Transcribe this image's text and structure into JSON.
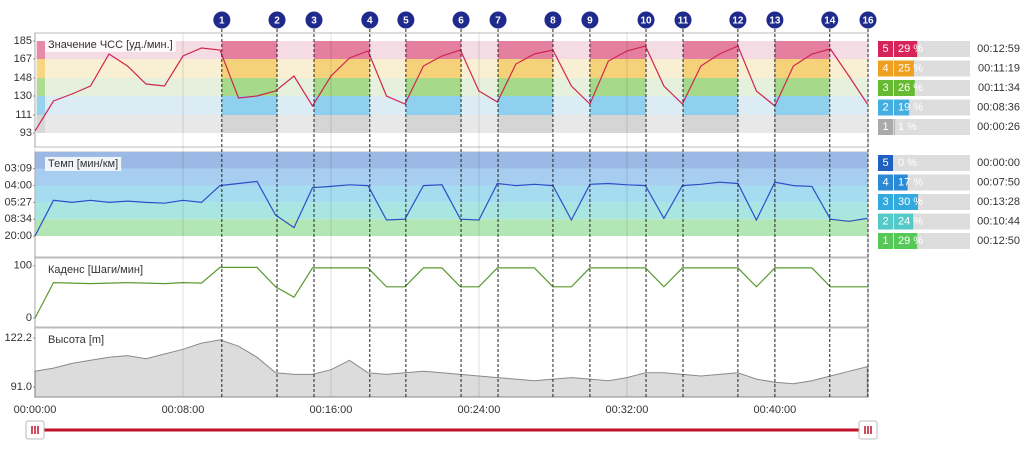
{
  "chart_data": [
    {
      "type": "line",
      "title": "Значение ЧСС [уд./мин.]",
      "x": [
        0,
        60,
        120,
        180,
        240,
        300,
        360,
        420,
        480,
        540,
        600,
        660,
        720,
        780,
        840,
        900,
        960,
        1020,
        1080,
        1140,
        1200,
        1260,
        1320,
        1380,
        1440,
        1500,
        1560,
        1620,
        1680,
        1740,
        1800,
        1860,
        1920,
        1980,
        2040,
        2100,
        2160,
        2220,
        2280,
        2340,
        2400,
        2460,
        2520,
        2580,
        2640,
        2700
      ],
      "series": [
        {
          "color": "#d0264e",
          "values": [
            95,
            125,
            132,
            140,
            172,
            160,
            142,
            140,
            170,
            178,
            176,
            128,
            130,
            135,
            150,
            120,
            150,
            168,
            175,
            130,
            122,
            160,
            170,
            176,
            135,
            124,
            162,
            172,
            176,
            140,
            122,
            165,
            175,
            180,
            140,
            122,
            160,
            172,
            180,
            135,
            120,
            160,
            172,
            177,
            150,
            122
          ]
        }
      ],
      "xlim": [
        0,
        2702
      ],
      "ylim": [
        79,
        193
      ],
      "yticks": [
        93,
        111,
        130,
        148,
        167,
        185
      ],
      "zone_colors": [
        "#d5d5d5",
        "#8fd0ee",
        "#a6d98a",
        "#f5d27a",
        "#e57fa0"
      ],
      "zone_colors_pale": [
        "#e8e8e8",
        "#dcecf4",
        "#e5f1dc",
        "#f9efd3",
        "#f5dbe3"
      ]
    },
    {
      "type": "line",
      "title": "Темп [мин/км]",
      "x": [
        0,
        60,
        120,
        180,
        240,
        300,
        360,
        420,
        480,
        540,
        600,
        660,
        720,
        780,
        840,
        900,
        960,
        1020,
        1080,
        1140,
        1200,
        1260,
        1320,
        1380,
        1440,
        1500,
        1560,
        1620,
        1680,
        1740,
        1800,
        1860,
        1920,
        1980,
        2040,
        2100,
        2160,
        2220,
        2280,
        2340,
        2400,
        2460,
        2520,
        2580,
        2640,
        2700
      ],
      "series": [
        {
          "color": "#2a50c8",
          "values": [
            3,
            11.5,
            11,
            11.5,
            11,
            11.3,
            11,
            10.8,
            11.5,
            11,
            15,
            15.5,
            16,
            8,
            5,
            14.5,
            14.8,
            15.2,
            15,
            6.8,
            7,
            15,
            15.2,
            7,
            6.8,
            15.5,
            15,
            15.3,
            15,
            6.8,
            15.3,
            15.5,
            15.2,
            15,
            7.2,
            15,
            15.3,
            15.8,
            15.5,
            6.8,
            15.8,
            15,
            14.8,
            7,
            6.5,
            7.2
          ]
        }
      ],
      "xlim": [
        0,
        2702
      ],
      "ylim": [
        -2,
        23
      ],
      "yticks": [
        {
          "value": 19.05,
          "label": "03:09"
        },
        {
          "value": 15,
          "label": "04:00"
        },
        {
          "value": 11,
          "label": "05:27"
        },
        {
          "value": 7,
          "label": "08:34"
        },
        {
          "value": 3,
          "label": "20:00"
        }
      ],
      "zone_colors": [
        "#b2e6b4",
        "#a9e6e2",
        "#a5dcef",
        "#a7cdf0",
        "#9bb9e4"
      ]
    },
    {
      "type": "line",
      "title": "Каденс [Шаги/мин]",
      "x": [
        0,
        60,
        120,
        180,
        240,
        300,
        360,
        420,
        480,
        540,
        600,
        660,
        720,
        780,
        840,
        900,
        960,
        1020,
        1080,
        1140,
        1200,
        1260,
        1320,
        1380,
        1440,
        1500,
        1560,
        1620,
        1680,
        1740,
        1800,
        1860,
        1920,
        1980,
        2040,
        2100,
        2160,
        2220,
        2280,
        2340,
        2400,
        2460,
        2520,
        2580,
        2640,
        2700
      ],
      "series": [
        {
          "color": "#5a9a30",
          "values": [
            0,
            68,
            67,
            66,
            67,
            68,
            67,
            66,
            68,
            67,
            97,
            97,
            97,
            60,
            40,
            96,
            96,
            96,
            96,
            60,
            60,
            96,
            96,
            60,
            60,
            96,
            96,
            96,
            60,
            60,
            96,
            96,
            96,
            96,
            60,
            96,
            96,
            96,
            96,
            60,
            96,
            96,
            96,
            60,
            60,
            60
          ]
        }
      ],
      "xlim": [
        0,
        2702
      ],
      "ylim": [
        -17,
        115
      ],
      "yticks": [
        0,
        100
      ]
    },
    {
      "type": "area",
      "title": "Высота [m]",
      "x": [
        0,
        60,
        120,
        180,
        240,
        300,
        360,
        420,
        480,
        540,
        600,
        660,
        720,
        780,
        840,
        900,
        960,
        1020,
        1080,
        1140,
        1200,
        1260,
        1320,
        1380,
        1440,
        1500,
        1560,
        1620,
        1680,
        1740,
        1800,
        1860,
        1920,
        1980,
        2040,
        2100,
        2160,
        2220,
        2280,
        2340,
        2400,
        2460,
        2520,
        2580,
        2640,
        2700
      ],
      "series": [
        {
          "color": "#8a8a8a",
          "values": [
            101,
            103,
            106,
            108,
            110,
            111,
            109,
            112,
            115,
            119,
            121,
            117,
            110,
            100,
            99,
            99,
            102,
            108,
            100,
            99,
            100,
            101,
            100,
            99,
            98,
            97,
            96,
            95,
            96,
            97,
            96,
            95,
            97,
            100,
            100,
            99,
            98,
            99,
            100,
            96,
            94,
            93,
            95,
            98,
            101,
            104
          ]
        }
      ],
      "xlim": [
        0,
        2702
      ],
      "ylim": [
        84.6,
        128.6
      ],
      "yticks": [
        {
          "value": 91,
          "label": "91.0"
        },
        122.2
      ],
      "xticks": [
        {
          "value": 0,
          "label": "00:00:00"
        },
        {
          "value": 480,
          "label": "00:08:00"
        },
        {
          "value": 960,
          "label": "00:16:00"
        },
        {
          "value": 1440,
          "label": "00:24:00"
        },
        {
          "value": 1920,
          "label": "00:32:00"
        },
        {
          "value": 2400,
          "label": "00:40:00"
        }
      ]
    }
  ],
  "laps": [
    {
      "label": "1",
      "time": 606
    },
    {
      "label": "2",
      "time": 785
    },
    {
      "label": "3",
      "time": 905
    },
    {
      "label": "4",
      "time": 1086
    },
    {
      "label": "5",
      "time": 1203
    },
    {
      "label": "6",
      "time": 1382
    },
    {
      "label": "7",
      "time": 1502
    },
    {
      "label": "8",
      "time": 1680
    },
    {
      "label": "9",
      "time": 1800
    },
    {
      "label": "10",
      "time": 1982
    },
    {
      "label": "11",
      "time": 2102
    },
    {
      "label": "12",
      "time": 2280
    },
    {
      "label": "13",
      "time": 2400
    },
    {
      "label": "14",
      "time": 2578
    },
    {
      "label": "16",
      "time": 2702
    }
  ],
  "hr_zones": [
    {
      "zone": "5",
      "percent": 29,
      "percent_label": "29 %",
      "time": "00:12:59",
      "color": "#d6245a"
    },
    {
      "zone": "4",
      "percent": 25,
      "percent_label": "25 %",
      "time": "00:11:19",
      "color": "#f0a020"
    },
    {
      "zone": "3",
      "percent": 26,
      "percent_label": "26 %",
      "time": "00:11:34",
      "color": "#66bb33"
    },
    {
      "zone": "2",
      "percent": 19,
      "percent_label": "19 %",
      "time": "00:08:36",
      "color": "#44aee0"
    },
    {
      "zone": "1",
      "percent": 1,
      "percent_label": "1 %",
      "time": "00:00:26",
      "color": "#aaaaaa"
    }
  ],
  "pace_zones": [
    {
      "zone": "5",
      "percent": 0,
      "percent_label": "0 %",
      "time": "00:00:00",
      "color": "#2060c0"
    },
    {
      "zone": "4",
      "percent": 17,
      "percent_label": "17 %",
      "time": "00:07:50",
      "color": "#2a8ad6"
    },
    {
      "zone": "3",
      "percent": 30,
      "percent_label": "30 %",
      "time": "00:13:28",
      "color": "#33aadd"
    },
    {
      "zone": "2",
      "percent": 24,
      "percent_label": "24 %",
      "time": "00:10:44",
      "color": "#55c8c8"
    },
    {
      "zone": "1",
      "percent": 29,
      "percent_label": "29 %",
      "time": "00:12:50",
      "color": "#55c855"
    }
  ]
}
